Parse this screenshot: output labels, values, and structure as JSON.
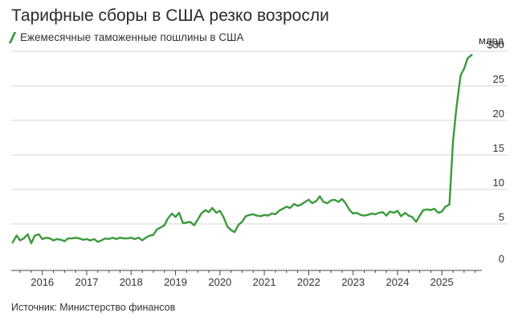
{
  "title": "Тарифные сборы в США резко возросли",
  "legend": "Ежемесячные таможенные пошлины в США",
  "unit": "млрд",
  "source": "Источник: Министерство финансов",
  "colors": {
    "line": "#3a9a3a",
    "grid": "#d6d6d6",
    "axis": "#444444"
  },
  "chart_data": {
    "type": "line",
    "title": "Тарифные сборы в США резко возросли",
    "xlabel": "",
    "ylabel": "млрд",
    "ylim": [
      0,
      30
    ],
    "yticks": [
      0,
      5,
      10,
      15,
      20,
      25,
      30
    ],
    "ytick_labels": [
      "0",
      "5",
      "10",
      "15",
      "20",
      "25",
      "$30"
    ],
    "xlim": [
      2015.3,
      2025.9
    ],
    "xticks": [
      2016,
      2017,
      2018,
      2019,
      2020,
      2021,
      2022,
      2023,
      2024,
      2025
    ],
    "xtick_labels": [
      "2016",
      "2017",
      "2018",
      "2019",
      "2020",
      "2021",
      "2022",
      "2023",
      "2024",
      "2025"
    ],
    "grid": true,
    "legend_position": "top-left",
    "series": [
      {
        "name": "Ежемесячные таможенные пошлины в США",
        "x": [
          2015.33,
          2015.42,
          2015.5,
          2015.58,
          2015.67,
          2015.75,
          2015.83,
          2015.92,
          2016.0,
          2016.08,
          2016.17,
          2016.25,
          2016.33,
          2016.42,
          2016.5,
          2016.58,
          2016.67,
          2016.75,
          2016.83,
          2016.92,
          2017.0,
          2017.08,
          2017.17,
          2017.25,
          2017.33,
          2017.42,
          2017.5,
          2017.58,
          2017.67,
          2017.75,
          2017.83,
          2017.92,
          2018.0,
          2018.08,
          2018.17,
          2018.25,
          2018.33,
          2018.42,
          2018.5,
          2018.58,
          2018.67,
          2018.75,
          2018.83,
          2018.92,
          2019.0,
          2019.08,
          2019.17,
          2019.25,
          2019.33,
          2019.42,
          2019.5,
          2019.58,
          2019.67,
          2019.75,
          2019.83,
          2019.92,
          2020.0,
          2020.08,
          2020.17,
          2020.25,
          2020.33,
          2020.42,
          2020.5,
          2020.58,
          2020.67,
          2020.75,
          2020.83,
          2020.92,
          2021.0,
          2021.08,
          2021.17,
          2021.25,
          2021.33,
          2021.42,
          2021.5,
          2021.58,
          2021.67,
          2021.75,
          2021.83,
          2021.92,
          2022.0,
          2022.08,
          2022.17,
          2022.25,
          2022.33,
          2022.42,
          2022.5,
          2022.58,
          2022.67,
          2022.75,
          2022.83,
          2022.92,
          2023.0,
          2023.08,
          2023.17,
          2023.25,
          2023.33,
          2023.42,
          2023.5,
          2023.58,
          2023.67,
          2023.75,
          2023.83,
          2023.92,
          2024.0,
          2024.08,
          2024.17,
          2024.25,
          2024.33,
          2024.42,
          2024.5,
          2024.58,
          2024.67,
          2024.75,
          2024.83,
          2024.92,
          2025.0,
          2025.08,
          2025.17,
          2025.25,
          2025.33,
          2025.42,
          2025.5,
          2025.58,
          2025.67
        ],
        "values": [
          2.3,
          3.3,
          2.6,
          2.9,
          3.5,
          2.2,
          3.3,
          3.5,
          2.8,
          3.0,
          2.9,
          2.6,
          2.8,
          2.7,
          2.5,
          2.9,
          2.9,
          3.0,
          2.9,
          2.7,
          2.8,
          2.6,
          2.8,
          2.4,
          2.6,
          2.9,
          2.8,
          3.0,
          2.8,
          3.0,
          2.9,
          2.9,
          3.0,
          2.8,
          3.0,
          2.6,
          3.0,
          3.3,
          3.4,
          4.2,
          4.5,
          4.8,
          5.8,
          6.5,
          6.0,
          6.6,
          5.1,
          5.2,
          5.3,
          4.8,
          5.6,
          6.5,
          7.0,
          6.7,
          7.3,
          6.6,
          6.9,
          6.0,
          4.6,
          4.1,
          3.8,
          4.9,
          5.3,
          6.1,
          6.3,
          6.4,
          6.2,
          6.1,
          6.3,
          6.2,
          6.5,
          6.4,
          6.9,
          7.2,
          7.5,
          7.3,
          7.9,
          7.6,
          7.8,
          8.2,
          8.5,
          8.0,
          8.3,
          9.0,
          8.2,
          8.0,
          8.4,
          8.5,
          8.2,
          8.6,
          8.0,
          7.0,
          6.5,
          6.6,
          6.3,
          6.2,
          6.3,
          6.5,
          6.4,
          6.6,
          6.7,
          6.2,
          6.8,
          6.6,
          6.9,
          6.1,
          6.6,
          6.2,
          6.0,
          5.3,
          6.2,
          7.0,
          7.1,
          7.0,
          7.2,
          6.6,
          6.8,
          7.5,
          7.8,
          17.0,
          22.0,
          26.5,
          27.5,
          29.0,
          29.5
        ]
      }
    ]
  }
}
